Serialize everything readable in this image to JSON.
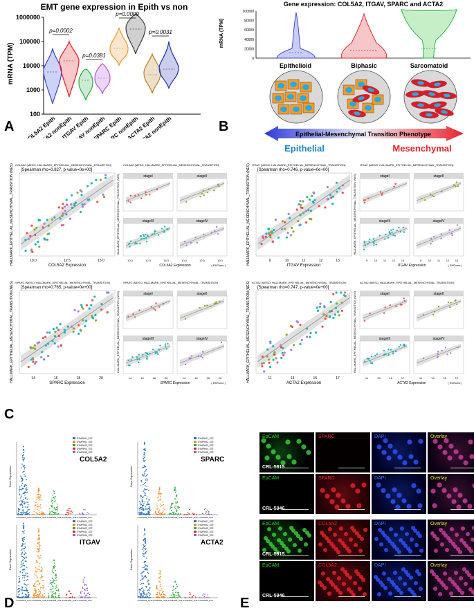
{
  "panel_labels": {
    "a": "A",
    "b": "B",
    "c": "C",
    "d": "D",
    "e": "E"
  },
  "panel_a": {
    "title": "EMT gene expression in Epith vs non",
    "ylabel": "mRNA (TPM)",
    "yticks": [
      "1000000",
      "100000",
      "10000",
      "1000",
      "100"
    ],
    "categories": [
      "COL5A2 Epith",
      "COL5A2 nonEpith",
      "ITGAV Epith",
      "ITGAV nonEpith",
      "SPARC Epith",
      "SPARC nonEpith",
      "ACTA2 Epith",
      "ACTA2 nonEpith"
    ],
    "pvalues": [
      "p=0.0002",
      "p=0.0381",
      "p=0.0009",
      "p=0.0031"
    ],
    "colors": [
      "#3a4fd6",
      "#e8232c",
      "#2fb34a",
      "#b85cd6",
      "#f39a3a",
      "#444444",
      "#b8852e",
      "#2b3ab8"
    ]
  },
  "panel_b": {
    "title": "Gene expression: COL5A2, ITGAV, SPARC and ACTA2",
    "ylabel": "mRNA (TPM)",
    "yticks": [
      "100000",
      "80000",
      "60000",
      "40000",
      "20000",
      "0"
    ],
    "groups": [
      "Epithelioid",
      "Biphasic",
      "Sarcomatoid"
    ],
    "arrow_label": "Epithelial-Mesenchymal Transition Phenotype",
    "epithelial": "Epithelial",
    "mesenchymal": "Mesenchymal"
  },
  "panel_c": {
    "plots": [
      {
        "header": "COL5A2 (MESO, HALLMARK_EPITHELIAL_MESENCHYMAL_TRANSITION)",
        "stat": "[Spearman rho=0.827, p-value=0e+00]",
        "xlabel": "COL5A2 Expression",
        "xticks": [
          "10.0",
          "12.5",
          "15.0"
        ]
      },
      {
        "header": "ITGAV (MESO, HALLMARK_EPITHELIAL_MESENCHYMAL_TRANSITION)",
        "stat": "[Spearman rho=0.746, p-value=0e+00]",
        "xlabel": "ITGAV Expression",
        "xticks": [
          "9",
          "10",
          "11",
          "12",
          "13"
        ]
      },
      {
        "header": "SPARC (MESO, HALLMARK_EPITHELIAL_MESENCHYMAL_TRANSITION)",
        "stat": "[Spearman rho=0.765, p-value=0e+00]",
        "xlabel": "SPARC Expression",
        "xticks": [
          "14",
          "16",
          "18",
          "20"
        ]
      },
      {
        "header": "ACTA2 (MESO, HALLMARK_EPITHELIAL_MESENCHYMAL_TRANSITION)",
        "stat": "[Spearman rho=0.747, p-value=0e+00]",
        "xlabel": "ACTA2 Expression",
        "xticks": [
          "11",
          "13",
          "15",
          "17"
        ]
      }
    ],
    "ylabel": "HALLMARK_EPITHELIAL_MESENCHYMAL_TRANSITION (NES)",
    "stages": [
      "stageI",
      "stageII",
      "stageIII",
      "stageIV"
    ],
    "credit": "( EMTome )"
  },
  "panel_d": {
    "genes": [
      "COL5A2",
      "SPARC",
      "ITGAV",
      "ACTA2"
    ],
    "ylabel": "Gene Expression",
    "legend": [
      "SYMPH01_S7E",
      "SYMPH02_S7E",
      "SYMPH03_S7E",
      "SYMPH04_S7E",
      "SYMPH05_S7E"
    ],
    "colors": [
      "#2a6fb5",
      "#f08a24",
      "#2ea83e",
      "#d62728",
      "#9467bd"
    ]
  },
  "panel_e": {
    "channels_row1": [
      "EpCAM",
      "SPARC",
      "DAPI",
      "Overlay"
    ],
    "channels_row2": [
      "EpCAM",
      "COL5A2",
      "DAPI",
      "Overlay"
    ],
    "cell_lines": [
      "CRL-5915",
      "CRL-5946"
    ]
  }
}
